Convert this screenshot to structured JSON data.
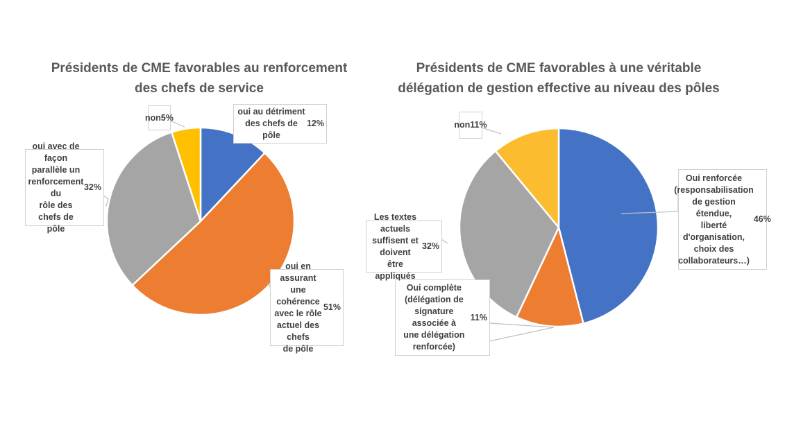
{
  "chart_data": [
    {
      "type": "pie",
      "title": "Présidents de CME favorables au renforcement\ndes chefs de service",
      "categories": [
        "oui au détriment\ndes chefs de pôle",
        "oui en assurant\nune cohérence\navec le rôle\nactuel des chefs\nde pôle",
        "oui avec de façon\nparallèle un\nrenforcement du\nrôle des chefs de\npôle",
        "non"
      ],
      "values": [
        12,
        51,
        32,
        5
      ],
      "value_labels": [
        "12%",
        "51%",
        "32%",
        "5%"
      ],
      "colors": [
        "#4472C4",
        "#ED7D31",
        "#A5A5A5",
        "#FFC000"
      ]
    },
    {
      "type": "pie",
      "title": "Présidents de CME favorables à une véritable\ndélégation de gestion effective au niveau des pôles",
      "categories": [
        "Oui renforcée\n(responsabilisation\nde gestion étendue,\nliberté\nd'organisation,\nchoix des\ncollaborateurs…)",
        "Oui complète\n(délégation de\nsignature associée à\nune délégation\nrenforcée)",
        "Les textes actuels\nsuffisent et doivent\nêtre appliqués",
        "non"
      ],
      "values": [
        46,
        11,
        32,
        11
      ],
      "value_labels": [
        "46%",
        "11%",
        "32%",
        "11%"
      ],
      "colors": [
        "#4472C4",
        "#ED7D31",
        "#A5A5A5",
        "#FBBC2F"
      ]
    }
  ]
}
